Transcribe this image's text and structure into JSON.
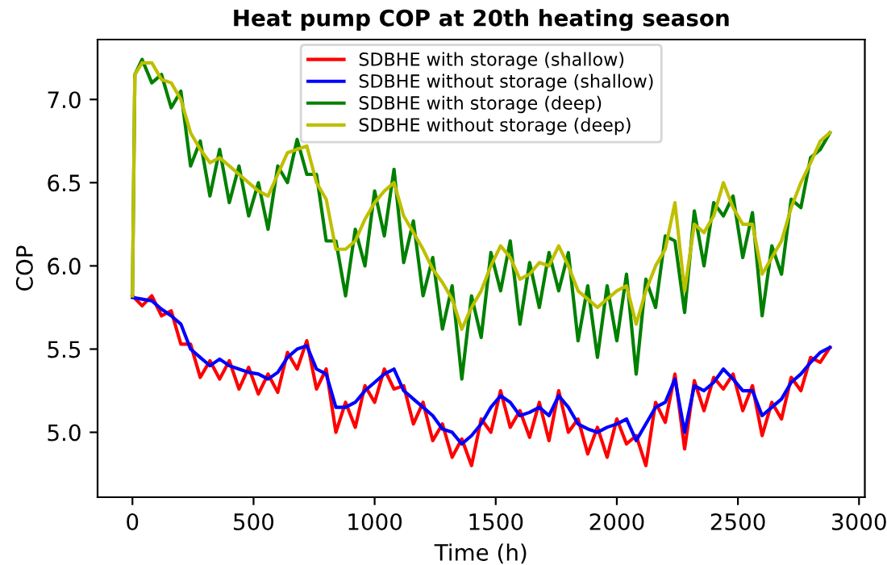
{
  "chart_data": {
    "type": "line",
    "title": "Heat pump COP at 20th heating season",
    "xlabel": "Time (h)",
    "ylabel": "COP",
    "xlim": [
      -144,
      3024
    ],
    "ylim": [
      4.61,
      7.36
    ],
    "xticks": [
      0,
      500,
      1000,
      1500,
      2000,
      2500,
      3000
    ],
    "yticks": [
      {
        "value": 5,
        "label": "5.0"
      },
      {
        "value": 5.5,
        "label": "5.5"
      },
      {
        "value": 6,
        "label": "6.0"
      },
      {
        "value": 6.5,
        "label": "6.5"
      },
      {
        "value": 7,
        "label": "7.0"
      }
    ],
    "grid": false,
    "legend": "top",
    "marker": "none",
    "line_style": "solid",
    "series": [
      {
        "name": "SDBHE with storage (shallow)",
        "color": "#ff0000",
        "x": [
          0,
          40,
          80,
          120,
          160,
          200,
          240,
          280,
          320,
          360,
          400,
          440,
          480,
          520,
          560,
          600,
          640,
          680,
          720,
          760,
          800,
          840,
          880,
          920,
          960,
          1000,
          1040,
          1080,
          1120,
          1160,
          1200,
          1240,
          1280,
          1320,
          1360,
          1400,
          1440,
          1480,
          1520,
          1560,
          1600,
          1640,
          1680,
          1720,
          1760,
          1800,
          1840,
          1880,
          1920,
          1960,
          2000,
          2040,
          2080,
          2120,
          2160,
          2200,
          2240,
          2280,
          2320,
          2360,
          2400,
          2440,
          2480,
          2520,
          2560,
          2600,
          2640,
          2680,
          2720,
          2760,
          2800,
          2840,
          2880
        ],
        "values": [
          5.82,
          5.76,
          5.82,
          5.7,
          5.73,
          5.53,
          5.53,
          5.33,
          5.43,
          5.32,
          5.43,
          5.26,
          5.39,
          5.23,
          5.35,
          5.24,
          5.48,
          5.38,
          5.55,
          5.26,
          5.38,
          5.0,
          5.18,
          5.03,
          5.28,
          5.18,
          5.38,
          5.26,
          5.28,
          5.05,
          5.18,
          4.95,
          5.05,
          4.85,
          4.96,
          4.8,
          5.08,
          5.0,
          5.25,
          5.03,
          5.13,
          4.97,
          5.18,
          4.95,
          5.25,
          5.0,
          5.08,
          4.87,
          5.03,
          4.85,
          5.08,
          4.93,
          4.98,
          4.8,
          5.18,
          5.06,
          5.35,
          4.9,
          5.31,
          5.13,
          5.33,
          5.26,
          5.35,
          5.13,
          5.28,
          4.98,
          5.18,
          5.08,
          5.33,
          5.25,
          5.45,
          5.42,
          5.51
        ]
      },
      {
        "name": "SDBHE without storage (shallow)",
        "color": "#0000ff",
        "x": [
          0,
          40,
          80,
          120,
          160,
          200,
          240,
          280,
          320,
          360,
          400,
          440,
          480,
          520,
          560,
          600,
          640,
          680,
          720,
          760,
          800,
          840,
          880,
          920,
          960,
          1000,
          1040,
          1080,
          1120,
          1160,
          1200,
          1240,
          1280,
          1320,
          1360,
          1400,
          1440,
          1480,
          1520,
          1560,
          1600,
          1640,
          1680,
          1720,
          1760,
          1800,
          1840,
          1880,
          1920,
          1960,
          2000,
          2040,
          2080,
          2120,
          2160,
          2200,
          2240,
          2280,
          2320,
          2360,
          2400,
          2440,
          2480,
          2520,
          2560,
          2600,
          2640,
          2680,
          2720,
          2760,
          2800,
          2840,
          2880
        ],
        "values": [
          5.81,
          5.8,
          5.79,
          5.74,
          5.7,
          5.65,
          5.5,
          5.45,
          5.4,
          5.44,
          5.4,
          5.38,
          5.36,
          5.35,
          5.32,
          5.36,
          5.45,
          5.5,
          5.52,
          5.38,
          5.35,
          5.15,
          5.15,
          5.18,
          5.25,
          5.3,
          5.35,
          5.38,
          5.25,
          5.2,
          5.15,
          5.1,
          5.02,
          5.0,
          4.93,
          4.98,
          5.05,
          5.15,
          5.22,
          5.18,
          5.1,
          5.12,
          5.15,
          5.1,
          5.22,
          5.15,
          5.05,
          5.02,
          5.0,
          5.03,
          5.05,
          5.08,
          4.95,
          5.05,
          5.15,
          5.18,
          5.32,
          5.0,
          5.28,
          5.25,
          5.3,
          5.38,
          5.32,
          5.25,
          5.25,
          5.1,
          5.15,
          5.2,
          5.3,
          5.35,
          5.42,
          5.48,
          5.51
        ]
      },
      {
        "name": "SDBHE with storage (deep)",
        "color": "#008000",
        "x": [
          0,
          10,
          40,
          80,
          120,
          160,
          200,
          240,
          280,
          320,
          360,
          400,
          440,
          480,
          520,
          560,
          600,
          640,
          680,
          720,
          760,
          800,
          840,
          880,
          920,
          960,
          1000,
          1040,
          1080,
          1120,
          1160,
          1200,
          1240,
          1280,
          1320,
          1360,
          1400,
          1440,
          1480,
          1520,
          1560,
          1600,
          1640,
          1680,
          1720,
          1760,
          1800,
          1840,
          1880,
          1920,
          1960,
          2000,
          2040,
          2080,
          2120,
          2160,
          2200,
          2240,
          2280,
          2320,
          2360,
          2400,
          2440,
          2480,
          2520,
          2560,
          2600,
          2640,
          2680,
          2720,
          2760,
          2800,
          2840,
          2880
        ],
        "values": [
          5.82,
          7.15,
          7.24,
          7.1,
          7.15,
          6.95,
          7.05,
          6.6,
          6.75,
          6.42,
          6.7,
          6.38,
          6.6,
          6.3,
          6.5,
          6.22,
          6.6,
          6.5,
          6.76,
          6.55,
          6.55,
          6.15,
          6.15,
          5.82,
          6.22,
          6.0,
          6.45,
          6.18,
          6.58,
          6.02,
          6.27,
          5.82,
          6.05,
          5.62,
          5.88,
          5.32,
          5.82,
          5.57,
          6.08,
          5.85,
          6.15,
          5.65,
          6.02,
          5.75,
          6.08,
          5.85,
          6.08,
          5.55,
          5.88,
          5.45,
          5.88,
          5.55,
          5.95,
          5.35,
          5.92,
          5.75,
          6.18,
          6.15,
          5.72,
          6.33,
          6.0,
          6.38,
          6.3,
          6.42,
          6.05,
          6.32,
          5.7,
          6.12,
          5.95,
          6.4,
          6.35,
          6.65,
          6.7,
          6.8
        ]
      },
      {
        "name": "SDBHE without storage (deep)",
        "color": "#bfbf00",
        "x": [
          0,
          10,
          40,
          80,
          120,
          160,
          200,
          240,
          280,
          320,
          360,
          400,
          440,
          480,
          520,
          560,
          600,
          640,
          680,
          720,
          760,
          800,
          840,
          880,
          920,
          960,
          1000,
          1040,
          1080,
          1120,
          1160,
          1200,
          1240,
          1280,
          1320,
          1360,
          1400,
          1440,
          1480,
          1520,
          1560,
          1600,
          1640,
          1680,
          1720,
          1760,
          1800,
          1840,
          1880,
          1920,
          1960,
          2000,
          2040,
          2080,
          2120,
          2160,
          2200,
          2240,
          2280,
          2320,
          2360,
          2400,
          2440,
          2480,
          2520,
          2560,
          2600,
          2640,
          2680,
          2720,
          2760,
          2800,
          2840,
          2880
        ],
        "values": [
          5.82,
          7.15,
          7.22,
          7.22,
          7.12,
          7.1,
          7.0,
          6.8,
          6.7,
          6.62,
          6.65,
          6.6,
          6.55,
          6.5,
          6.45,
          6.42,
          6.55,
          6.68,
          6.7,
          6.72,
          6.5,
          6.4,
          6.1,
          6.1,
          6.15,
          6.28,
          6.38,
          6.45,
          6.5,
          6.3,
          6.2,
          6.1,
          5.98,
          5.9,
          5.8,
          5.62,
          5.75,
          5.85,
          6.0,
          6.12,
          6.05,
          5.92,
          5.95,
          6.02,
          6.0,
          6.12,
          6.0,
          5.85,
          5.8,
          5.75,
          5.8,
          5.85,
          5.88,
          5.65,
          5.85,
          6.0,
          6.1,
          6.38,
          5.85,
          6.25,
          6.2,
          6.3,
          6.5,
          6.35,
          6.25,
          6.25,
          5.95,
          6.05,
          6.15,
          6.35,
          6.5,
          6.62,
          6.75,
          6.8
        ]
      }
    ]
  }
}
